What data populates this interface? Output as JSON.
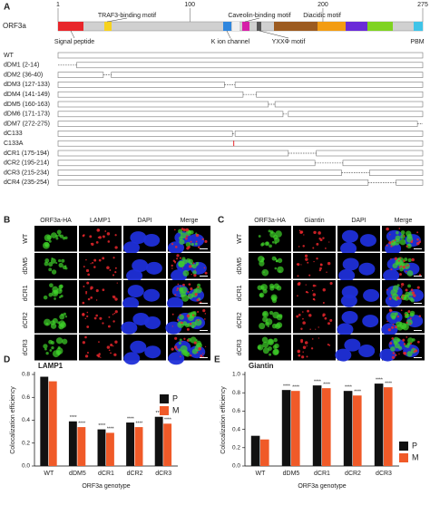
{
  "panel_a": {
    "label": "A",
    "protein": "ORF3a",
    "scale_ticks": [
      1,
      100,
      200,
      275
    ],
    "motifs": {
      "traf3": "TRAF3-binding motif",
      "caveolin": "Caveolin-binding motif",
      "diacidic": "Diacidic motif",
      "signal": "Signal peptide",
      "kion": "K ion channel",
      "yxx": "YXXΦ motif",
      "pbm": "PBM"
    },
    "constructs": [
      {
        "name": "WT"
      },
      {
        "name": "dDM1 (2-14)",
        "deleted": [
          2,
          14
        ]
      },
      {
        "name": "dDM2 (36-40)",
        "deleted": [
          36,
          40
        ]
      },
      {
        "name": "dDM3 (127-133)",
        "deleted": [
          127,
          133
        ]
      },
      {
        "name": "dDM4 (141-149)",
        "deleted": [
          141,
          149
        ]
      },
      {
        "name": "dDM5 (160-163)",
        "deleted": [
          160,
          163
        ]
      },
      {
        "name": "dDM6 (171-173)",
        "deleted": [
          171,
          173
        ]
      },
      {
        "name": "dDM7 (272-275)",
        "deleted": [
          272,
          275
        ]
      },
      {
        "name": "dC133",
        "deleted": [
          133,
          133
        ]
      },
      {
        "name": "C133A",
        "point": 133
      },
      {
        "name": "dCR1 (175-194)",
        "deleted": [
          175,
          194
        ]
      },
      {
        "name": "dCR2 (195-214)",
        "deleted": [
          195,
          214
        ]
      },
      {
        "name": "dCR3 (215-234)",
        "deleted": [
          215,
          234
        ]
      },
      {
        "name": "dCR4 (235-254)",
        "deleted": [
          235,
          254
        ]
      }
    ]
  },
  "panel_b": {
    "label": "B",
    "columns": [
      "ORF3a-HA",
      "LAMP1",
      "DAPI",
      "Merge"
    ],
    "rows": [
      "WT",
      "dDM5",
      "dCR1",
      "dCR2",
      "dCR3"
    ]
  },
  "panel_c": {
    "label": "C",
    "columns": [
      "ORF3a-HA",
      "Giantin",
      "DAPI",
      "Merge"
    ],
    "rows": [
      "WT",
      "dDM5",
      "dCR1",
      "dCR2",
      "dCR3"
    ]
  },
  "chart_data": [
    {
      "type": "bar",
      "panel_label": "D",
      "title": "LAMP1",
      "y_label": "Colocalization efficiency",
      "x_label": "ORF3a genotype",
      "categories": [
        "WT",
        "dDM5",
        "dCR1",
        "dCR2",
        "dCR3"
      ],
      "series": [
        {
          "name": "P",
          "color": "#111111",
          "values": [
            0.78,
            0.39,
            0.32,
            0.38,
            0.43
          ],
          "annotations": [
            null,
            "****",
            "****",
            "****",
            "****"
          ]
        },
        {
          "name": "M",
          "color": "#f05a28",
          "values": [
            0.74,
            0.34,
            0.29,
            0.34,
            0.37
          ],
          "annotations": [
            null,
            "****",
            "****",
            "****",
            "****"
          ]
        }
      ],
      "ylim": [
        0,
        0.8
      ],
      "yticks": [
        {
          "value": 0,
          "label": "0.0"
        },
        {
          "value": 0.2,
          "label": "0.2"
        },
        {
          "value": 0.4,
          "label": "0.4"
        },
        {
          "value": 0.6,
          "label": "0.6"
        },
        {
          "value": 0.8,
          "label": "0.8"
        }
      ],
      "legend": "upper right"
    },
    {
      "type": "bar",
      "panel_label": "E",
      "title": "Giantin",
      "y_label": "Colocalization efficiency",
      "x_label": "ORF3a genotype",
      "categories": [
        "WT",
        "dDM5",
        "dCR1",
        "dCR2",
        "dCR3"
      ],
      "series": [
        {
          "name": "P",
          "color": "#111111",
          "values": [
            0.33,
            0.83,
            0.88,
            0.82,
            0.9
          ],
          "annotations": [
            null,
            "****",
            "****",
            "****",
            "****"
          ]
        },
        {
          "name": "M",
          "color": "#f05a28",
          "values": [
            0.29,
            0.82,
            0.85,
            0.77,
            0.86
          ],
          "annotations": [
            null,
            "****",
            "****",
            "****",
            "****"
          ]
        }
      ],
      "ylim": [
        0,
        1.0
      ],
      "yticks": [
        {
          "value": 0,
          "label": "0.0"
        },
        {
          "value": 0.2,
          "label": "0.2"
        },
        {
          "value": 0.4,
          "label": "0.4"
        },
        {
          "value": 0.6,
          "label": "0.6"
        },
        {
          "value": 0.8,
          "label": "0.8"
        },
        {
          "value": 1.0,
          "label": "1.0"
        }
      ],
      "legend": "center right"
    }
  ]
}
